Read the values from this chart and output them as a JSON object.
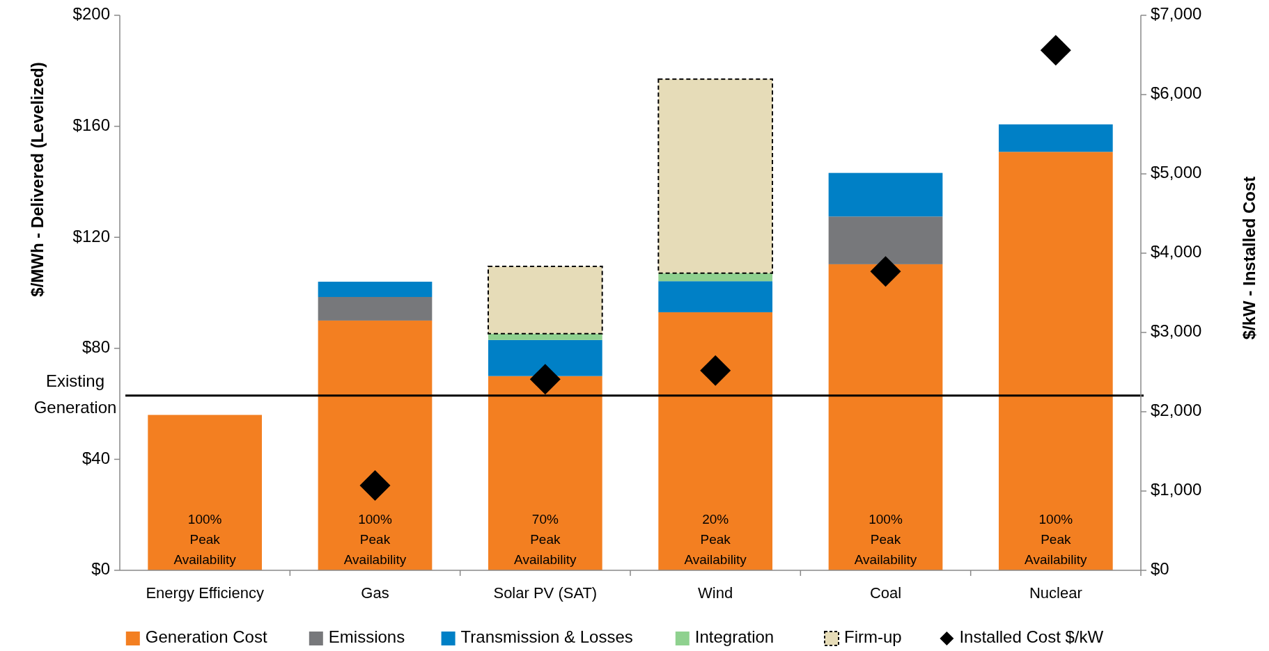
{
  "chart_data": {
    "type": "bar",
    "stacked": true,
    "categories": [
      "Energy Efficiency",
      "Gas",
      "Solar PV (SAT)",
      "Wind",
      "Coal",
      "Nuclear"
    ],
    "series": [
      {
        "name": "Generation Cost",
        "color": "#f37f21",
        "values": [
          56,
          90,
          70,
          93,
          110.3,
          150.8
        ]
      },
      {
        "name": "Emissions",
        "color": "#77787b",
        "values": [
          null,
          8.5,
          null,
          null,
          17.2,
          null
        ]
      },
      {
        "name": "Transmission & Losses",
        "color": "#0080c6",
        "values": [
          null,
          5.5,
          13,
          11.2,
          15.7,
          9.9
        ]
      },
      {
        "name": "Integration",
        "color": "#8fd18f",
        "values": [
          null,
          null,
          2.3,
          2.9,
          null,
          null
        ]
      },
      {
        "name": "Firm-up",
        "color": "#e6dcb8",
        "line_style": "dashed",
        "values": [
          null,
          null,
          24.2,
          69.9,
          null,
          null
        ]
      },
      {
        "name": "Installed Cost $/kW",
        "type": "scatter",
        "axis": "y2",
        "marker": "diamond",
        "color": "#000000",
        "x": [
          "Gas",
          "Solar PV (SAT)",
          "Wind",
          "Coal",
          "Nuclear"
        ],
        "values": [
          1070,
          2410,
          2520,
          3770,
          6560
        ]
      }
    ],
    "ylabel": "$/MWh - Delivered (Levelized)",
    "y2label": "$/kW - Installed Cost",
    "ylim": [
      0,
      200
    ],
    "yticks": [
      {
        "value": 0,
        "label": "$0"
      },
      {
        "value": 40,
        "label": "$40"
      },
      {
        "value": 80,
        "label": "$80"
      },
      {
        "value": 120,
        "label": "$120"
      },
      {
        "value": 160,
        "label": "$160"
      },
      {
        "value": 200,
        "label": "$200"
      }
    ],
    "y2lim": [
      0,
      7000
    ],
    "y2ticks": [
      {
        "value": 0,
        "label": "$0"
      },
      {
        "value": 1000,
        "label": "$1,000"
      },
      {
        "value": 2000,
        "label": "$2,000"
      },
      {
        "value": 3000,
        "label": "$3,000"
      },
      {
        "value": 4000,
        "label": "$4,000"
      },
      {
        "value": 5000,
        "label": "$5,000"
      },
      {
        "value": 6000,
        "label": "$6,000"
      },
      {
        "value": 7000,
        "label": "$7,000"
      }
    ],
    "ref_lines": [
      {
        "axis": "y",
        "value": 63,
        "label": "Existing\nGeneration",
        "color": "#000000"
      }
    ],
    "annotations": [
      "100%\nPeak\nAvailability",
      "100%\nPeak\nAvailability",
      "70%\nPeak\nAvailability",
      "20%\nPeak\nAvailability",
      "100%\nPeak\nAvailability",
      "100%\nPeak\nAvailability"
    ],
    "legend": "bottom",
    "grid": false
  }
}
